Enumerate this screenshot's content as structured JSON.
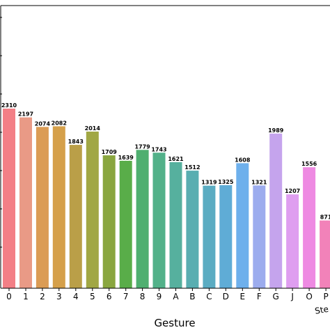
{
  "chart_data": {
    "type": "bar",
    "xlabel": "Gesture",
    "ylabel": "",
    "ylim": [
      0,
      3700
    ],
    "categories": [
      "0",
      "1",
      "2",
      "3",
      "4",
      "5",
      "6",
      "7",
      "8",
      "9",
      "A",
      "B",
      "C",
      "D",
      "E",
      "F",
      "G",
      "J",
      "O",
      "P"
    ],
    "values": [
      2310,
      2197,
      2074,
      2082,
      1843,
      2014,
      1709,
      1639,
      1779,
      1743,
      1621,
      1512,
      1319,
      1325,
      1608,
      1321,
      1989,
      1207,
      1556,
      871
    ],
    "value_labels": [
      "2310",
      "2197",
      "2074",
      "2082",
      "1843",
      "2014",
      "1709",
      "1639",
      "1779",
      "1743",
      "1621",
      "1512",
      "1319",
      "1325",
      "1608",
      "1321",
      "1989",
      "1207",
      "1556",
      "871"
    ],
    "colors": [
      "#f37f86",
      "#e99a86",
      "#db9c55",
      "#d5a04a",
      "#ba9f48",
      "#a1a744",
      "#89a63f",
      "#59ad49",
      "#4faf70",
      "#52b189",
      "#56b09e",
      "#59aeb1",
      "#5bacc2",
      "#5facd6",
      "#6eb0ec",
      "#9cacee",
      "#c5a4ed",
      "#df9ef0",
      "#ee8ae2",
      "#f282b9"
    ],
    "partial_label": "Ste"
  }
}
